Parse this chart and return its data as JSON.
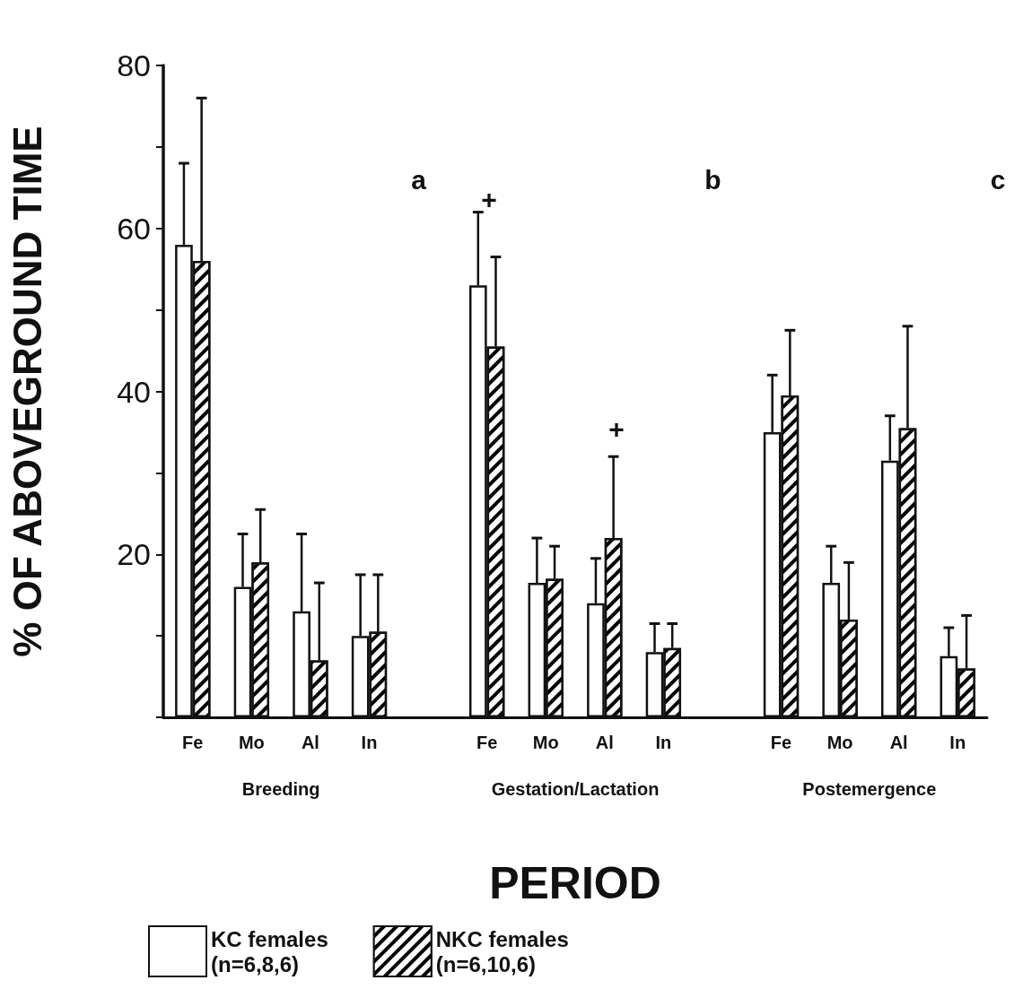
{
  "chart_data": {
    "type": "bar",
    "xlabel": "PERIOD",
    "ylabel": "% OF ABOVEGROUND TIME",
    "categories": [
      "Fe",
      "Mo",
      "Al",
      "In",
      null,
      "Fe",
      "Mo",
      "Al",
      "In",
      null,
      "Fe",
      "Mo",
      "Al",
      "In"
    ],
    "series": [
      {
        "name": "KC females\n(n=6,8,6)",
        "color": "#ffffff",
        "values": [
          58,
          16,
          13,
          10,
          null,
          53,
          16.5,
          14,
          8,
          null,
          35,
          16.5,
          31.5,
          7.5
        ],
        "errors": [
          [
            58,
            68
          ],
          [
            16,
            22.5
          ],
          [
            13,
            22.5
          ],
          [
            10,
            17.5
          ],
          null,
          [
            53,
            62
          ],
          [
            16.5,
            22
          ],
          [
            14,
            19.5
          ],
          [
            8,
            11.5
          ],
          null,
          [
            35,
            42
          ],
          [
            16.5,
            21
          ],
          [
            31.5,
            37
          ],
          [
            7.5,
            11
          ]
        ]
      },
      {
        "name": "NKC females\n(n=6,10,6)",
        "color": "#000000",
        "values": [
          56,
          19,
          7,
          10.5,
          null,
          45.5,
          17,
          22,
          8.5,
          null,
          39.5,
          12,
          35.5,
          6
        ],
        "errors": [
          [
            56,
            76
          ],
          [
            19,
            25.5
          ],
          [
            7,
            16.5
          ],
          [
            10.5,
            17.5
          ],
          null,
          [
            45.5,
            56.5
          ],
          [
            17,
            21
          ],
          [
            22,
            32
          ],
          [
            8.5,
            11.5
          ],
          null,
          [
            39.5,
            47.5
          ],
          [
            12,
            19
          ],
          [
            35.5,
            48
          ],
          [
            6,
            12.5
          ]
        ]
      }
    ],
    "ylim": [
      0,
      80
    ],
    "yticks": [
      {
        "value": 0,
        "label": null
      },
      {
        "value": 10,
        "label": null
      },
      20,
      {
        "value": 30,
        "label": null
      },
      40,
      {
        "value": 50,
        "label": null
      },
      60,
      {
        "value": 70,
        "label": null
      },
      80
    ],
    "grid": false,
    "legend": "bottom left",
    "annotations": [
      "Breeding",
      "Gestation/Lactation",
      "Postemergence",
      "a",
      "b",
      "c",
      "+",
      "+"
    ]
  }
}
